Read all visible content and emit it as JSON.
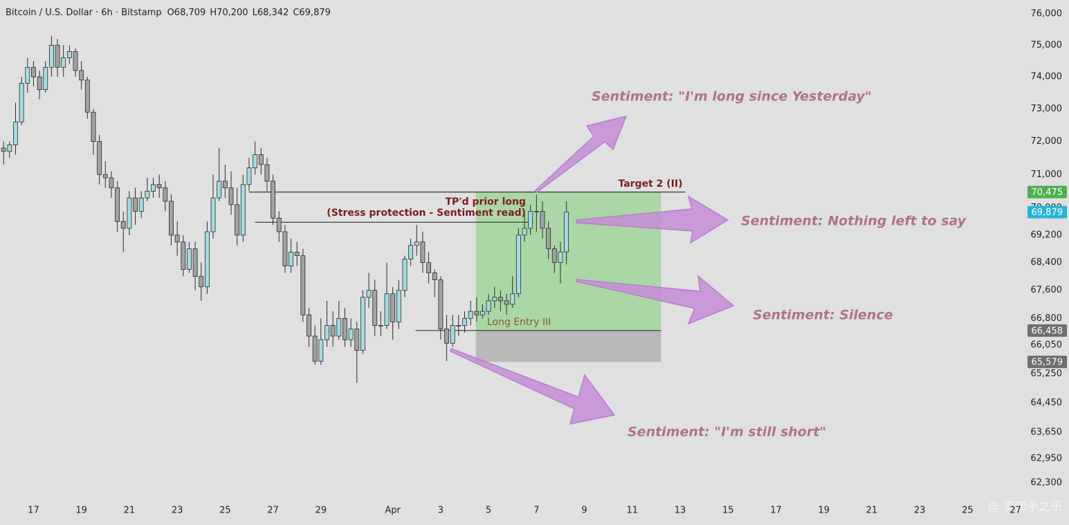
{
  "chart_data": {
    "type": "candlestick",
    "title": "Bitcoin / U.S. Dollar · 6h · Bitstamp",
    "ohlc_header": [
      "O68,709",
      "H70,200",
      "L68,342",
      "C69,879"
    ],
    "x": [
      15.75,
      16,
      16.25,
      16.5,
      16.75,
      17,
      17.25,
      17.5,
      17.75,
      18,
      18.25,
      18.5,
      18.75,
      19,
      19.25,
      19.5,
      19.75,
      20,
      20.25,
      20.5,
      20.75,
      21,
      21.25,
      21.5,
      21.75,
      22,
      22.25,
      22.5,
      22.75,
      23,
      23.25,
      23.5,
      23.75,
      24,
      24.25,
      24.5,
      24.75,
      25,
      25.25,
      25.5,
      25.75,
      26,
      26.25,
      26.5,
      26.75,
      27,
      27.25,
      27.5,
      27.75,
      28,
      28.25,
      28.5,
      28.75,
      29,
      29.25,
      29.5,
      29.75,
      30,
      30.25,
      30.5,
      30.75,
      31,
      31.25,
      31.5,
      31.75,
      32,
      32.25,
      32.5,
      32.75,
      33,
      33.25,
      33.5,
      33.75,
      34,
      34.25,
      34.5,
      34.75,
      35,
      35.25,
      35.5,
      35.75,
      36,
      36.25,
      36.5,
      36.75,
      37,
      37.25,
      37.5,
      37.75,
      38,
      38.25,
      38.5,
      38.75,
      39,
      39.25
    ],
    "open": [
      71800,
      71700,
      71900,
      72600,
      73800,
      74300,
      74000,
      73600,
      74300,
      75000,
      74300,
      74600,
      74800,
      74200,
      73900,
      72900,
      72000,
      71000,
      70900,
      70600,
      69600,
      69400,
      70300,
      69900,
      70300,
      70500,
      70700,
      70600,
      70200,
      69200,
      69000,
      68200,
      68800,
      68000,
      67700,
      69300,
      70300,
      70800,
      70600,
      70100,
      69200,
      70700,
      71200,
      71600,
      71300,
      70800,
      69700,
      69300,
      68300,
      68700,
      68600,
      66900,
      66300,
      65600,
      66200,
      66600,
      66300,
      66800,
      66200,
      66500,
      65900,
      67400,
      67600,
      66600,
      66600,
      67500,
      66700,
      67600,
      68500,
      68900,
      69000,
      68400,
      68100,
      67900,
      66500,
      66100,
      66600,
      66600,
      66800,
      67000,
      66900,
      67000,
      67300,
      67400,
      67300,
      67200,
      67500,
      69200,
      69400,
      69900,
      69900,
      69400,
      68800,
      68400,
      68709
    ],
    "high": [
      72000,
      72000,
      73200,
      74000,
      74600,
      74500,
      74200,
      74500,
      75300,
      75200,
      75000,
      75000,
      74900,
      74500,
      74000,
      73000,
      72200,
      71400,
      71100,
      70800,
      69900,
      70500,
      70600,
      70500,
      70900,
      70900,
      71000,
      70800,
      70400,
      69600,
      69200,
      69000,
      69000,
      68400,
      69600,
      71000,
      71800,
      71300,
      71100,
      70600,
      71000,
      71500,
      72000,
      71800,
      71500,
      71000,
      69900,
      69500,
      69100,
      69000,
      68800,
      67100,
      66600,
      66800,
      67300,
      67000,
      67300,
      67100,
      66800,
      66700,
      67600,
      68100,
      67900,
      67000,
      68400,
      67700,
      67900,
      68600,
      69100,
      69500,
      69300,
      68700,
      68200,
      68000,
      66900,
      66900,
      66900,
      67000,
      67300,
      67400,
      67200,
      67500,
      67700,
      67600,
      67500,
      68000,
      69400,
      69900,
      70100,
      70400,
      70200,
      69600,
      68900,
      69000,
      70200
    ],
    "low": [
      71300,
      71500,
      71600,
      72500,
      73500,
      73700,
      73300,
      73500,
      74000,
      74000,
      74000,
      74400,
      74000,
      73600,
      72700,
      71600,
      70700,
      70600,
      70300,
      69300,
      68700,
      69200,
      69500,
      69700,
      70200,
      70300,
      70300,
      69900,
      68900,
      68600,
      68000,
      68100,
      67600,
      67300,
      67500,
      69100,
      70200,
      70300,
      69800,
      68900,
      69000,
      70500,
      71000,
      71000,
      70500,
      69500,
      69000,
      68100,
      68100,
      68300,
      66700,
      66000,
      65500,
      65500,
      66000,
      66000,
      66200,
      66000,
      66000,
      65000,
      65800,
      67100,
      66300,
      66300,
      66500,
      66200,
      66500,
      67400,
      68300,
      68600,
      68100,
      67800,
      67400,
      66200,
      65600,
      66000,
      66300,
      66400,
      66600,
      66700,
      66800,
      66900,
      67100,
      67000,
      66900,
      67100,
      67400,
      69000,
      69200,
      69300,
      69100,
      68500,
      68100,
      67800,
      68342
    ],
    "close": [
      71700,
      71900,
      72600,
      73800,
      74300,
      74000,
      73600,
      74300,
      75000,
      74300,
      74600,
      74800,
      74200,
      73900,
      72900,
      72000,
      71000,
      70900,
      70600,
      69600,
      69400,
      70300,
      69900,
      70300,
      70500,
      70700,
      70600,
      70200,
      69200,
      69000,
      68200,
      68800,
      68000,
      67700,
      69300,
      70300,
      70800,
      70600,
      70100,
      69200,
      70700,
      71200,
      71600,
      71300,
      70800,
      69700,
      69300,
      68300,
      68700,
      68600,
      66900,
      66300,
      65600,
      66200,
      66600,
      66300,
      66800,
      66200,
      66500,
      65900,
      67400,
      67600,
      66600,
      66600,
      67500,
      66700,
      67600,
      68500,
      68900,
      69000,
      68400,
      68100,
      67900,
      66500,
      66100,
      66600,
      66600,
      66800,
      67000,
      66900,
      67000,
      67300,
      67400,
      67300,
      67200,
      67500,
      69200,
      69400,
      69900,
      69900,
      69400,
      68800,
      68400,
      68709,
      69879
    ],
    "up_color": "#a3dbe2",
    "down_color": "#a2a2a2",
    "log_scale": true,
    "xlim": [
      15.6,
      58.3
    ],
    "xticks": [
      17,
      19,
      21,
      23,
      25,
      27,
      29,
      {
        "value": 32,
        "label": "Apr"
      },
      {
        "value": 34,
        "label": "3"
      },
      {
        "value": 36,
        "label": "5"
      },
      {
        "value": 38,
        "label": "7"
      },
      {
        "value": 40,
        "label": "9"
      },
      {
        "value": 42,
        "label": "11"
      },
      {
        "value": 44,
        "label": "13"
      },
      {
        "value": 46,
        "label": "15"
      },
      {
        "value": 48,
        "label": "17"
      },
      {
        "value": 50,
        "label": "19"
      },
      {
        "value": 52,
        "label": "21"
      },
      {
        "value": 54,
        "label": "23"
      },
      {
        "value": 56,
        "label": "25"
      },
      {
        "value": 58,
        "label": "27"
      }
    ],
    "ylim": [
      61940,
      76450
    ],
    "yticks": [
      {
        "value": 76000,
        "label": "76,000"
      },
      {
        "value": 75000,
        "label": "75,000"
      },
      {
        "value": 74000,
        "label": "74,000"
      },
      {
        "value": 73000,
        "label": "73,000"
      },
      {
        "value": 72000,
        "label": "72,000"
      },
      {
        "value": 71000,
        "label": "71,000"
      },
      {
        "value": 70000,
        "label": "70,000"
      },
      {
        "value": 69200,
        "label": "69,200"
      },
      {
        "value": 68400,
        "label": "68,400"
      },
      {
        "value": 67600,
        "label": "67,600"
      },
      {
        "value": 66800,
        "label": "66,800"
      },
      {
        "value": 66050,
        "label": "66,050"
      },
      {
        "value": 65250,
        "label": "65,250"
      },
      {
        "value": 64450,
        "label": "64,450"
      },
      {
        "value": 63650,
        "label": "63,650"
      },
      {
        "value": 62950,
        "label": "62,950"
      },
      {
        "value": 62300,
        "label": "62,300"
      }
    ],
    "price_labels": [
      {
        "value": 70475,
        "label": "70,475",
        "color": "#4caf50"
      },
      {
        "value": 69879,
        "label": "69,879",
        "color": "#26b5d6"
      },
      {
        "value": 66458,
        "label": "66,458",
        "color": "#6e6e6e"
      },
      {
        "value": 65579,
        "label": "65,579",
        "color": "#6e6e6e"
      }
    ],
    "levels": [
      {
        "value": 70475,
        "x": [
          26.0,
          44.2
        ],
        "label": "Target 2 (II)"
      },
      {
        "value": 69578,
        "x": [
          26.25,
          37.87
        ],
        "label": [
          "TP'd prior long",
          "(Stress protection - Sentiment read)"
        ]
      },
      {
        "value": 66458,
        "x": [
          32.95,
          43.2
        ],
        "label": "Long Entry III"
      }
    ],
    "position": {
      "x": [
        35.47,
        43.2
      ],
      "entry": 66458,
      "target": 70475,
      "stop": 65579,
      "profit_color": "#a5d6a0",
      "loss_color": "#b5b5b5"
    },
    "annotations": [
      "Sentiment: \"I'm long since Yesterday\"",
      "Sentiment: Nothing left to say",
      "Sentiment: Silence",
      "Sentiment: \"I'm still short\""
    ]
  },
  "watermark": "@ 安知矛之乐"
}
